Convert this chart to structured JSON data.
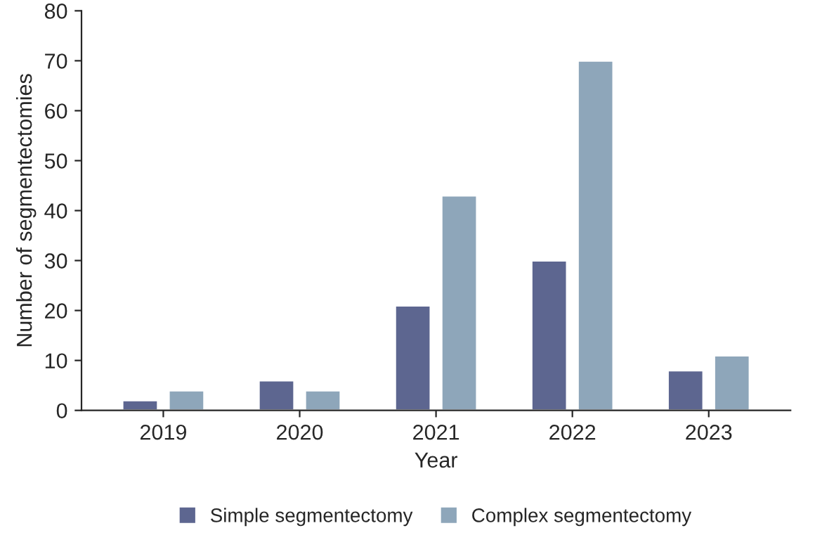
{
  "chart_data": {
    "type": "bar",
    "xlabel": "Year",
    "ylabel": "Number of segmentectomies",
    "categories": [
      "2019",
      "2020",
      "2021",
      "2022",
      "2023"
    ],
    "series": [
      {
        "name": "Simple segmentectomy",
        "color": "#5d6690",
        "values": [
          2,
          6,
          21,
          30,
          8
        ]
      },
      {
        "name": "Complex segmentectomy",
        "color": "#8ea6ba",
        "values": [
          4,
          4,
          43,
          70,
          11
        ]
      }
    ],
    "ylim": [
      0,
      80
    ],
    "yticks": [
      0,
      10,
      20,
      30,
      40,
      50,
      60,
      70,
      80
    ],
    "grid": false,
    "legend": "bottom"
  }
}
